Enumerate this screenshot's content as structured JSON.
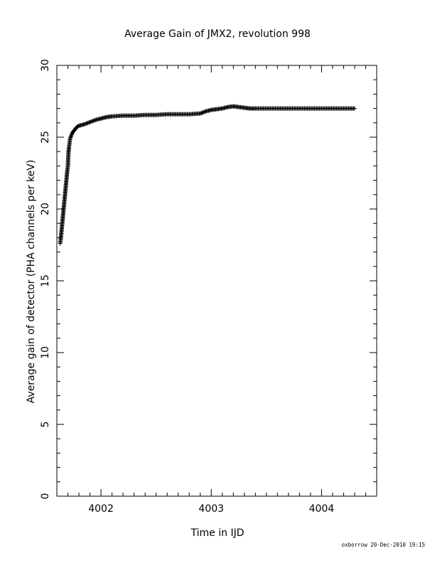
{
  "chart_data": {
    "type": "scatter",
    "title": "Average Gain of JMX2, revolution 998",
    "xlabel": "Time in IJD",
    "ylabel": "Average gain of detector (PHA channels per keV)",
    "xlim": [
      4001.6,
      4004.5
    ],
    "ylim": [
      0,
      30
    ],
    "x_ticks": [
      4002,
      4003,
      4004
    ],
    "y_ticks": [
      0,
      5,
      10,
      15,
      20,
      25,
      30
    ],
    "x_tick_labels": [
      "4002",
      "4003",
      "4004"
    ],
    "y_tick_labels": [
      "0",
      "5",
      "10",
      "15",
      "20",
      "25",
      "30"
    ],
    "grid": false,
    "marker": "plus",
    "series": [
      {
        "points": [
          [
            4001.63,
            17.6
          ],
          [
            4001.635,
            17.9
          ],
          [
            4001.64,
            18.3
          ],
          [
            4001.645,
            18.7
          ],
          [
            4001.65,
            19.1
          ],
          [
            4001.655,
            19.5
          ],
          [
            4001.66,
            19.9
          ],
          [
            4001.665,
            20.3
          ],
          [
            4001.67,
            20.7
          ],
          [
            4001.675,
            21.1
          ],
          [
            4001.68,
            21.5
          ],
          [
            4001.685,
            21.9
          ],
          [
            4001.69,
            22.3
          ],
          [
            4001.695,
            22.7
          ],
          [
            4001.7,
            23.0
          ],
          [
            4001.705,
            23.9
          ],
          [
            4001.71,
            24.3
          ],
          [
            4001.715,
            24.6
          ],
          [
            4001.72,
            24.9
          ],
          [
            4001.73,
            25.1
          ],
          [
            4001.74,
            25.3
          ],
          [
            4001.76,
            25.5
          ],
          [
            4001.78,
            25.7
          ],
          [
            4001.8,
            25.8
          ],
          [
            4001.85,
            25.9
          ],
          [
            4001.9,
            26.05
          ],
          [
            4001.95,
            26.2
          ],
          [
            4002.0,
            26.3
          ],
          [
            4002.05,
            26.4
          ],
          [
            4002.1,
            26.45
          ],
          [
            4002.2,
            26.5
          ],
          [
            4002.3,
            26.5
          ],
          [
            4002.4,
            26.55
          ],
          [
            4002.5,
            26.55
          ],
          [
            4002.6,
            26.6
          ],
          [
            4002.7,
            26.6
          ],
          [
            4002.8,
            26.6
          ],
          [
            4002.9,
            26.65
          ],
          [
            4002.95,
            26.8
          ],
          [
            4003.0,
            26.9
          ],
          [
            4003.05,
            26.95
          ],
          [
            4003.1,
            27.0
          ],
          [
            4003.15,
            27.1
          ],
          [
            4003.2,
            27.15
          ],
          [
            4003.25,
            27.1
          ],
          [
            4003.3,
            27.05
          ],
          [
            4003.35,
            27.0
          ],
          [
            4003.4,
            27.0
          ],
          [
            4003.5,
            27.0
          ],
          [
            4003.6,
            27.0
          ],
          [
            4003.7,
            27.0
          ],
          [
            4003.8,
            27.0
          ],
          [
            4003.9,
            27.0
          ],
          [
            4004.0,
            27.0
          ],
          [
            4004.1,
            27.0
          ],
          [
            4004.2,
            27.0
          ],
          [
            4004.3,
            27.0
          ]
        ]
      }
    ]
  },
  "footer": {
    "credit": "oxborrow 20-Dec-2010 19:15"
  }
}
